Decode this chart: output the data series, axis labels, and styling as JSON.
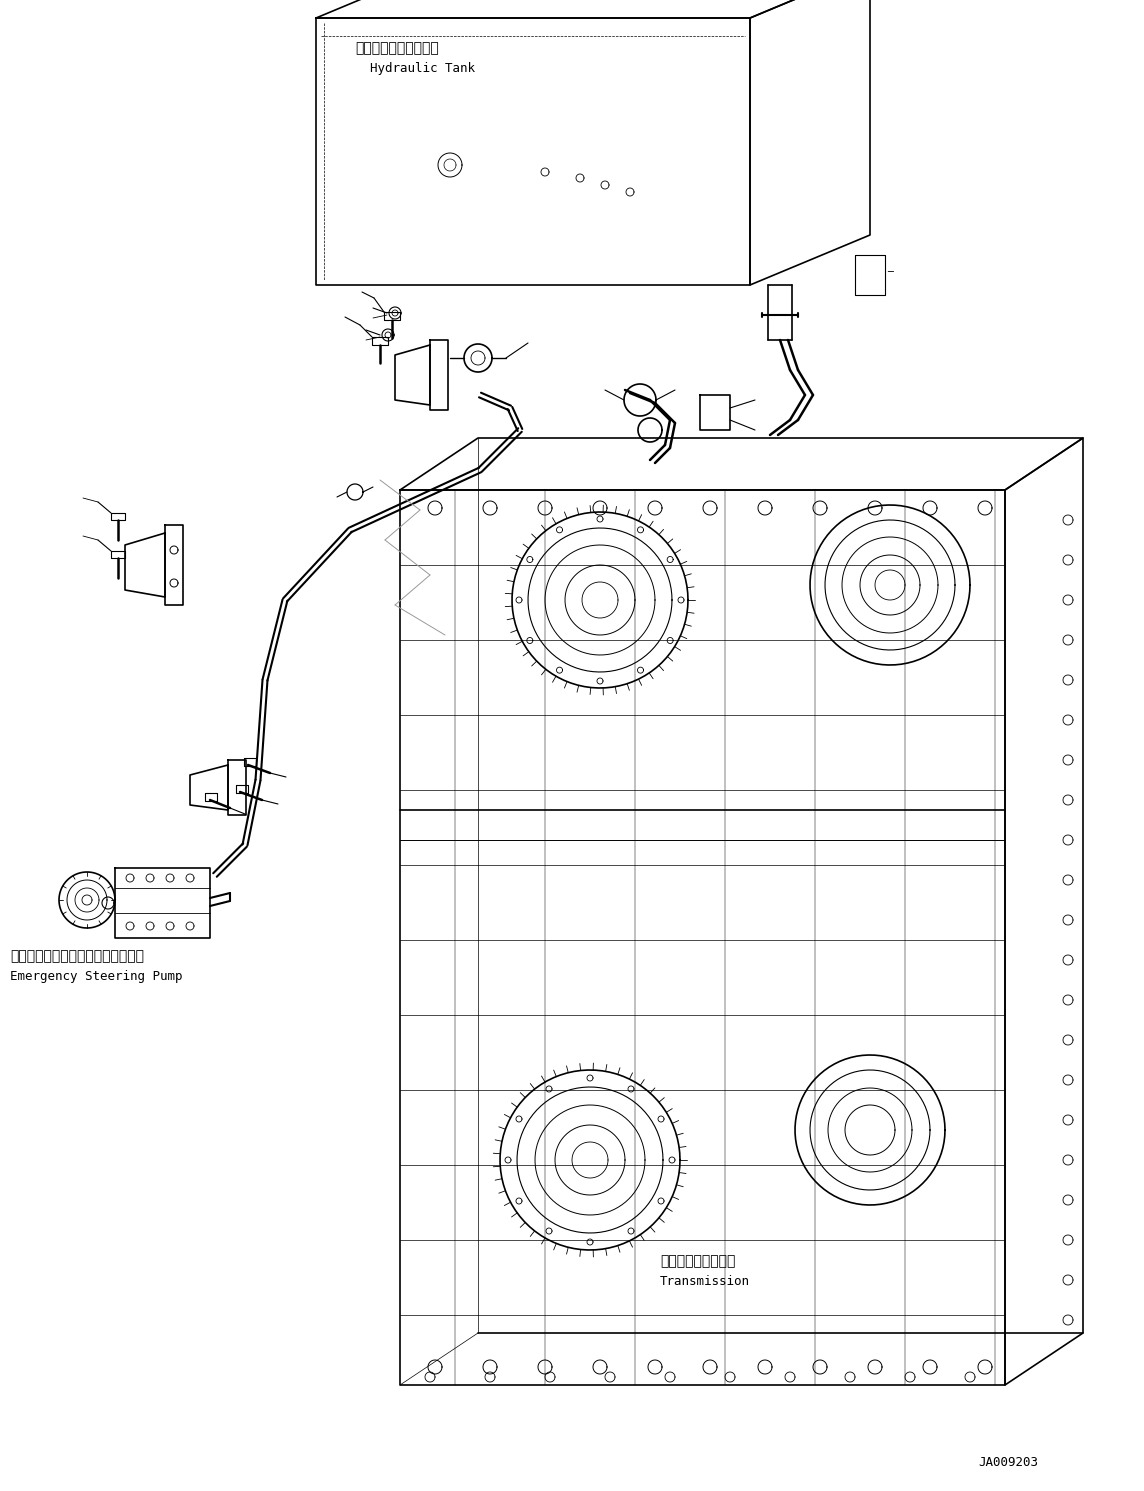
{
  "background_color": "#ffffff",
  "fig_width": 11.44,
  "fig_height": 14.91,
  "dpi": 100,
  "labels": {
    "hydraulic_tank_jp": "ハイドロリックタンク",
    "hydraulic_tank_en": "Hydraulic Tank",
    "emergency_pump_jp": "エマージェンシステアリングポンプ",
    "emergency_pump_en": "Emergency Steering Pump",
    "transmission_jp": "トランスミッション",
    "transmission_en": "Transmission",
    "code": "JA009203"
  },
  "line_color": "#000000",
  "lw_main": 1.2,
  "lw_thin": 0.6,
  "lw_thick": 1.8,
  "lw_pipe": 2.2,
  "font_jp": 10,
  "font_en": 9,
  "font_code": 9
}
